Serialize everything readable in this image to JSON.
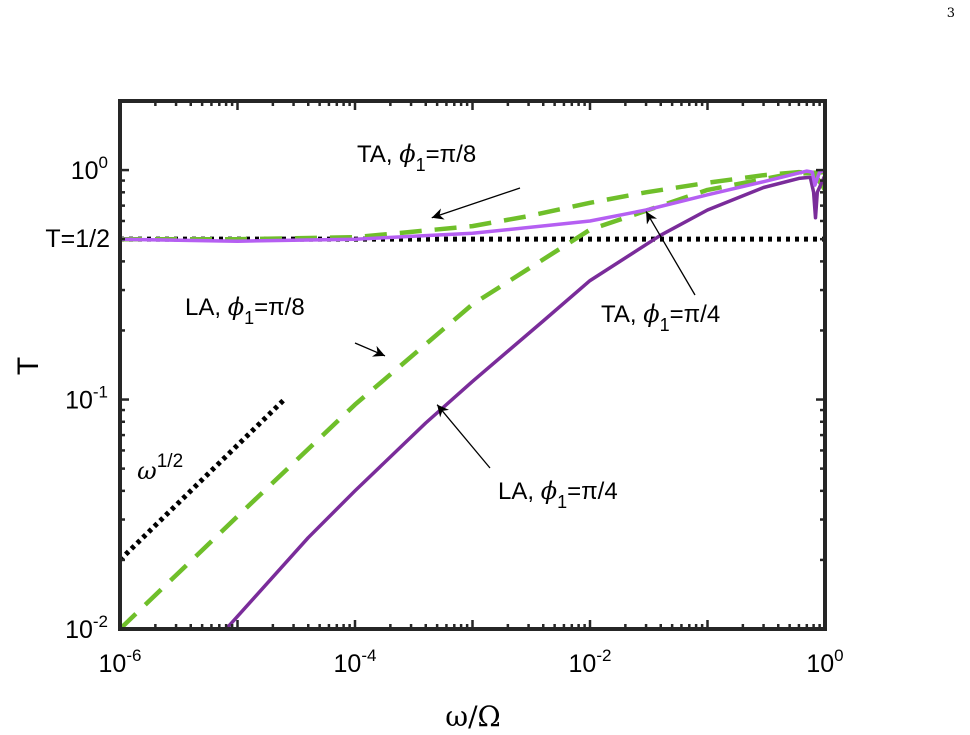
{
  "page_number": "3",
  "chart_data": {
    "type": "line",
    "xlabel": "ω/Ω",
    "ylabel": "T",
    "xscale": "log",
    "yscale": "log",
    "xlim": [
      1e-06,
      1
    ],
    "ylim": [
      0.01,
      2
    ],
    "grid": false,
    "x_ticks": [
      {
        "value": 1e-06,
        "base": "10",
        "exp": "-6"
      },
      {
        "value": 0.0001,
        "base": "10",
        "exp": "-4"
      },
      {
        "value": 0.01,
        "base": "10",
        "exp": "-2"
      },
      {
        "value": 1,
        "base": "10",
        "exp": "0"
      }
    ],
    "y_ticks": [
      {
        "value": 0.01,
        "base": "10",
        "exp": "-2"
      },
      {
        "value": 0.1,
        "base": "10",
        "exp": "-1"
      },
      {
        "value": 1,
        "base": "10",
        "exp": "0"
      }
    ],
    "reference_line": {
      "label": "T=1/2",
      "y": 0.5,
      "color": "#000000"
    },
    "slope_guide": {
      "label_base": "ω",
      "label_exp": "1/2",
      "x": [
        1e-06,
        2.5e-05
      ],
      "y": [
        0.02,
        0.1
      ],
      "color": "#000000"
    },
    "series": [
      {
        "id": "ta-pi8",
        "style": "dashed",
        "color": "#6fbf2a",
        "x": [
          1e-06,
          1e-05,
          0.0001,
          0.001,
          0.003,
          0.01,
          0.03,
          0.1,
          0.3,
          0.6,
          0.75,
          0.85,
          1.0
        ],
        "y": [
          0.5,
          0.5,
          0.51,
          0.57,
          0.63,
          0.72,
          0.8,
          0.88,
          0.95,
          0.98,
          0.97,
          0.93,
          0.82
        ]
      },
      {
        "id": "la-pi8",
        "style": "dashed",
        "color": "#6fbf2a",
        "x": [
          1e-06,
          1e-05,
          0.0001,
          0.001,
          0.01,
          0.1,
          0.5,
          1.0
        ],
        "y": [
          0.01,
          0.031,
          0.095,
          0.26,
          0.55,
          0.82,
          0.96,
          0.98
        ]
      },
      {
        "id": "ta-pi4",
        "style": "solid",
        "color": "#b55ff2",
        "x": [
          1e-06,
          1e-05,
          0.0001,
          0.001,
          0.01,
          0.03,
          0.1,
          0.3,
          0.55,
          0.7,
          0.78,
          0.82,
          0.86,
          0.9,
          1.0
        ],
        "y": [
          0.5,
          0.49,
          0.5,
          0.53,
          0.6,
          0.67,
          0.78,
          0.89,
          0.96,
          0.99,
          0.98,
          0.86,
          0.92,
          0.98,
          1.0
        ]
      },
      {
        "id": "la-pi4",
        "style": "solid",
        "color": "#7a2c9a",
        "x": [
          8e-06,
          4e-05,
          0.0001,
          0.0004,
          0.001,
          0.004,
          0.01,
          0.04,
          0.1,
          0.3,
          0.6,
          0.75,
          0.8,
          0.83,
          0.86,
          1.0
        ],
        "y": [
          0.01,
          0.025,
          0.04,
          0.079,
          0.12,
          0.22,
          0.33,
          0.52,
          0.67,
          0.84,
          0.92,
          0.93,
          0.8,
          0.62,
          0.8,
          0.95
        ]
      }
    ],
    "annotations": [
      {
        "id": "ta-pi8",
        "series": "ta-pi8",
        "prefix": "TA, ",
        "sym": "ϕ",
        "sub": "1",
        "suffix": "=π/8",
        "target": [
          0.00045,
          0.62
        ]
      },
      {
        "id": "la-pi8",
        "series": "la-pi8",
        "prefix": "LA, ",
        "sym": "ϕ",
        "sub": "1",
        "suffix": "=π/8",
        "target": [
          0.00018,
          0.155
        ]
      },
      {
        "id": "ta-pi4",
        "series": "ta-pi4",
        "prefix": "TA, ",
        "sym": "ϕ",
        "sub": "1",
        "suffix": "=π/4",
        "target": [
          0.03,
          0.66
        ]
      },
      {
        "id": "la-pi4",
        "series": "la-pi4",
        "prefix": "LA, ",
        "sym": "ϕ",
        "sub": "1",
        "suffix": "=π/4",
        "target": [
          0.0005,
          0.095
        ]
      }
    ]
  }
}
